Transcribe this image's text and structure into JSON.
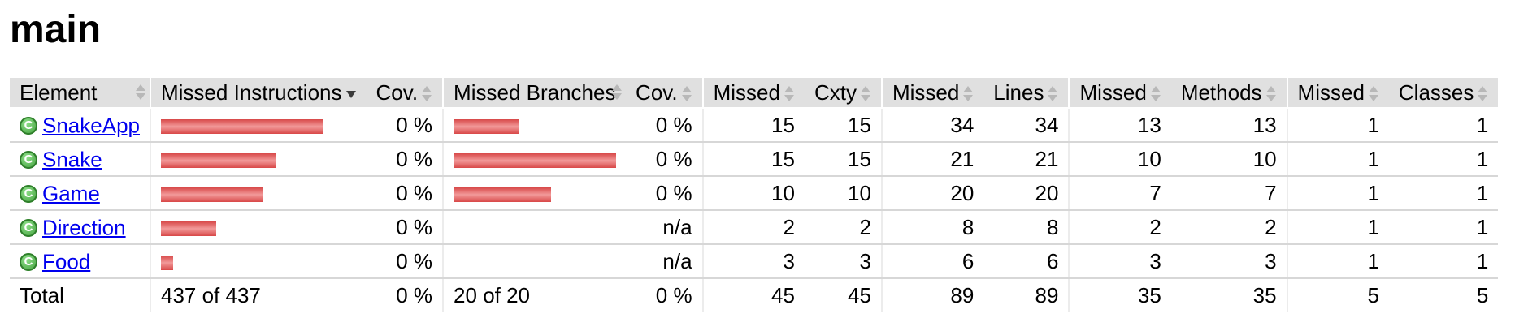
{
  "page": {
    "title": "main"
  },
  "headers": {
    "element": "Element",
    "missed_instructions": "Missed Instructions",
    "cov1": "Cov.",
    "missed_branches": "Missed Branches",
    "cov2": "Cov.",
    "missed_cxty": "Missed",
    "cxty": "Cxty",
    "missed_lines": "Missed",
    "lines": "Lines",
    "missed_methods": "Missed",
    "methods": "Methods",
    "missed_classes": "Missed",
    "classes": "Classes"
  },
  "rows": [
    {
      "name": "SnakeApp",
      "instr_bar_fraction": 1.0,
      "instr_cov": "0 %",
      "branch_bar_fraction": 0.4,
      "branch_cov": "0 %",
      "missed_cxty": "15",
      "cxty": "15",
      "missed_lines": "34",
      "lines": "34",
      "missed_methods": "13",
      "methods": "13",
      "missed_classes": "1",
      "classes": "1"
    },
    {
      "name": "Snake",
      "instr_bar_fraction": 0.71,
      "instr_cov": "0 %",
      "branch_bar_fraction": 1.0,
      "branch_cov": "0 %",
      "missed_cxty": "15",
      "cxty": "15",
      "missed_lines": "21",
      "lines": "21",
      "missed_methods": "10",
      "methods": "10",
      "missed_classes": "1",
      "classes": "1"
    },
    {
      "name": "Game",
      "instr_bar_fraction": 0.625,
      "instr_cov": "0 %",
      "branch_bar_fraction": 0.6,
      "branch_cov": "0 %",
      "missed_cxty": "10",
      "cxty": "10",
      "missed_lines": "20",
      "lines": "20",
      "missed_methods": "7",
      "methods": "7",
      "missed_classes": "1",
      "classes": "1"
    },
    {
      "name": "Direction",
      "instr_bar_fraction": 0.34,
      "instr_cov": "0 %",
      "branch_bar_fraction": 0,
      "branch_cov": "n/a",
      "missed_cxty": "2",
      "cxty": "2",
      "missed_lines": "8",
      "lines": "8",
      "missed_methods": "2",
      "methods": "2",
      "missed_classes": "1",
      "classes": "1"
    },
    {
      "name": "Food",
      "instr_bar_fraction": 0.075,
      "instr_cov": "0 %",
      "branch_bar_fraction": 0,
      "branch_cov": "n/a",
      "missed_cxty": "3",
      "cxty": "3",
      "missed_lines": "6",
      "lines": "6",
      "missed_methods": "3",
      "methods": "3",
      "missed_classes": "1",
      "classes": "1"
    }
  ],
  "total": {
    "label": "Total",
    "instructions": "437 of 437",
    "instr_cov": "0 %",
    "branches": "20 of 20",
    "branch_cov": "0 %",
    "missed_cxty": "45",
    "cxty": "45",
    "missed_lines": "89",
    "lines": "89",
    "missed_methods": "35",
    "methods": "35",
    "missed_classes": "5",
    "classes": "5"
  },
  "icons": {
    "class_icon": "class-c-icon",
    "class_icon_letter": "C"
  },
  "colors": {
    "bar_red": "#d84848",
    "header_bg": "#e0e0e0",
    "link": "#0000ee",
    "icon_green": "#3a9a35"
  }
}
